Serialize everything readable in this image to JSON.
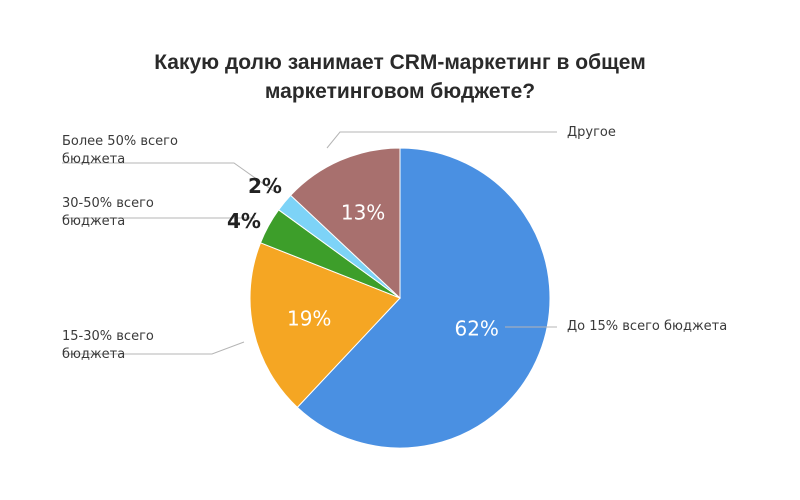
{
  "chart_data": {
    "type": "pie",
    "title": "Какую долю занимает CRM-маркетинг в общем маркетинговом бюджете?",
    "title_lines": [
      "Какую долю занимает CRM-маркетинг в общем",
      "маркетинговом бюджете?"
    ],
    "start_angle_deg": 0,
    "direction": "clockwise",
    "slices": [
      {
        "key": "do15",
        "label": "До 15% всего бюджета",
        "label_lines": [
          "До 15% всего бюджета"
        ],
        "value": 62,
        "display": "62%",
        "color": "#4a90e2",
        "label_inside": true
      },
      {
        "key": "s15_30",
        "label": "15-30% всего бюджета",
        "label_lines": [
          "15-30% всего",
          "бюджета"
        ],
        "value": 19,
        "display": "19%",
        "color": "#f5a623",
        "label_inside": true
      },
      {
        "key": "s30_50",
        "label": "30-50% всего бюджета",
        "label_lines": [
          "30-50% всего",
          "бюджета"
        ],
        "value": 4,
        "display": "4%",
        "color": "#3d9e2a",
        "label_inside": false
      },
      {
        "key": "s50",
        "label": "Более 50% всего бюджета",
        "label_lines": [
          "Более 50% всего",
          "бюджета"
        ],
        "value": 2,
        "display": "2%",
        "color": "#7dd3f7",
        "label_inside": false
      },
      {
        "key": "other",
        "label": "Другое",
        "label_lines": [
          "Другое"
        ],
        "value": 13,
        "display": "13%",
        "color": "#a8706e",
        "label_inside": true
      }
    ]
  }
}
